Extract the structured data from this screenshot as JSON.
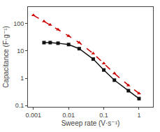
{
  "chart_data": {
    "type": "line",
    "log": true,
    "grid": false,
    "xlabel": "Sweep rate (V·s⁻¹)",
    "ylabel": "Capacitance (F·g⁻¹)",
    "xlim": [
      0.0007,
      2.5
    ],
    "ylim": [
      0.09,
      400
    ],
    "xticks": [
      0.001,
      0.01,
      0.1,
      1
    ],
    "yticks": [
      0.1,
      1,
      10,
      100
    ],
    "series": [
      {
        "color": "#111111",
        "marker": "square",
        "line_style": "solid",
        "x": [
          0.002,
          0.003,
          0.005,
          0.01,
          0.02,
          0.05,
          0.1,
          0.2,
          0.5,
          1.0
        ],
        "values": [
          20,
          20,
          19,
          17,
          12,
          5.0,
          2.0,
          0.85,
          0.35,
          0.18
        ]
      },
      {
        "color": "#cc0000",
        "marker": "triangle",
        "line_style": "dashed",
        "x": [
          0.001,
          0.002,
          0.003,
          0.005,
          0.01,
          0.02,
          0.05,
          0.1,
          0.2,
          0.5,
          1.0
        ],
        "values": [
          200,
          120,
          90,
          60,
          35,
          20,
          8.0,
          3.5,
          1.5,
          0.55,
          0.28
        ]
      }
    ]
  }
}
